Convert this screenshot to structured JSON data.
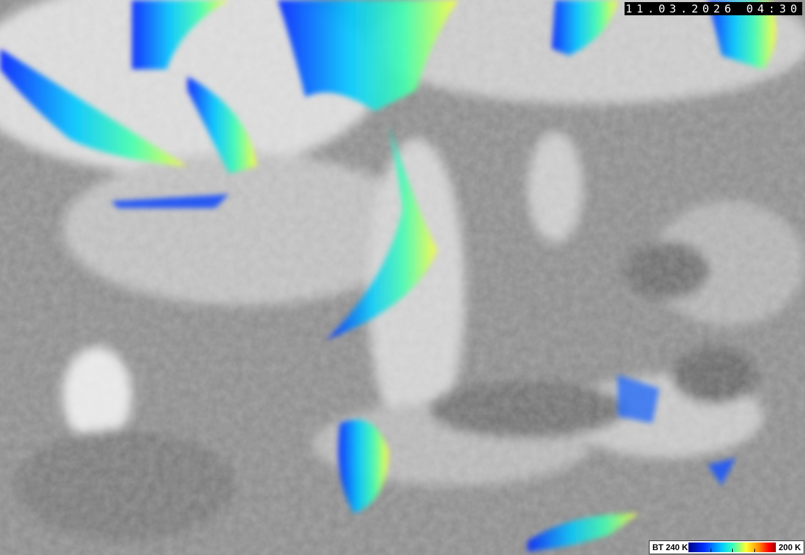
{
  "image": {
    "subject": "infrared satellite image",
    "timestamp": "11.03.2026 04:30"
  },
  "legend": {
    "low_label": "BT 240 K",
    "high_label": "200 K",
    "colors": [
      "#00008a",
      "#0030ff",
      "#00c8ff",
      "#30ffc0",
      "#ffff30",
      "#ff9000",
      "#ff0000",
      "#a00000"
    ]
  }
}
